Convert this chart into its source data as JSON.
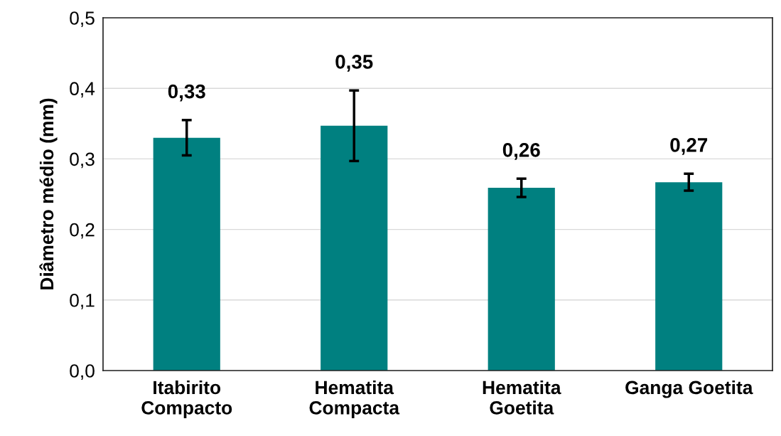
{
  "chart_data": {
    "type": "bar",
    "ylabel": "Diâmetro médio (mm)",
    "categories": [
      "Itabirito\nCompacto",
      "Hematita\nCompacta",
      "Hematita\nGoetita",
      "Ganga Goetita"
    ],
    "values": [
      0.33,
      0.347,
      0.259,
      0.267
    ],
    "errors": [
      0.025,
      0.05,
      0.013,
      0.012
    ],
    "value_labels": [
      "0,33",
      "0,35",
      "0,26",
      "0,27"
    ],
    "color": "#008080",
    "ylim": [
      0,
      0.5
    ],
    "yticks": [
      {
        "value": 0,
        "label": "0,0"
      },
      {
        "value": 0.1,
        "label": "0,1"
      },
      {
        "value": 0.2,
        "label": "0,2"
      },
      {
        "value": 0.3,
        "label": "0,3"
      },
      {
        "value": 0.4,
        "label": "0,4"
      },
      {
        "value": 0.5,
        "label": "0,5"
      }
    ],
    "grid": "y",
    "legend": false
  }
}
